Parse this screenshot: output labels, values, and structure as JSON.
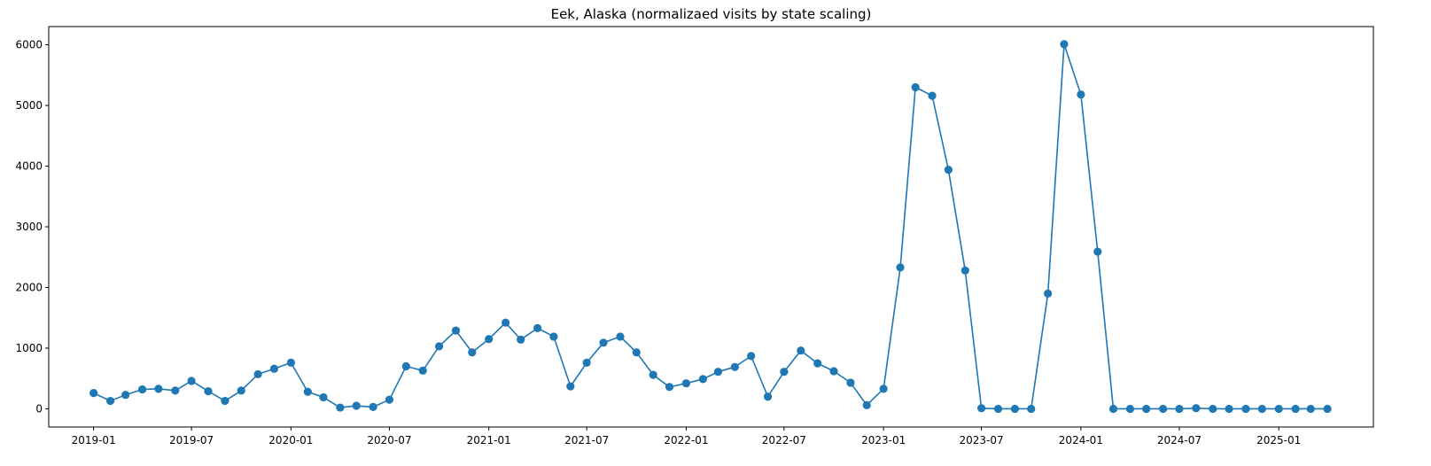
{
  "chart_data": {
    "type": "line",
    "title": "Eek, Alaska (normalizaed visits by state scaling)",
    "xlabel": "",
    "ylabel": "",
    "x_tick_labels": [
      "2019-01",
      "2019-07",
      "2020-01",
      "2020-07",
      "2021-01",
      "2021-07",
      "2022-01",
      "2022-07",
      "2023-01",
      "2023-07",
      "2024-01",
      "2024-07",
      "2025-01"
    ],
    "y_ticks": [
      0,
      1000,
      2000,
      3000,
      4000,
      5000,
      6000
    ],
    "ylim": [
      -300,
      6300
    ],
    "xlim": [
      "2018-10-10",
      "2025-06-25"
    ],
    "grid": false,
    "legend": "none",
    "series": [
      {
        "color": "#1f77b4",
        "marker": "circle",
        "x": [
          "2019-01-01",
          "2019-02-01",
          "2019-03-01",
          "2019-04-01",
          "2019-05-01",
          "2019-06-01",
          "2019-07-01",
          "2019-08-01",
          "2019-09-01",
          "2019-10-01",
          "2019-11-01",
          "2019-12-01",
          "2020-01-01",
          "2020-02-01",
          "2020-03-01",
          "2020-04-01",
          "2020-05-01",
          "2020-06-01",
          "2020-07-01",
          "2020-08-01",
          "2020-09-01",
          "2020-10-01",
          "2020-11-01",
          "2020-12-01",
          "2021-01-01",
          "2021-02-01",
          "2021-03-01",
          "2021-04-01",
          "2021-05-01",
          "2021-06-01",
          "2021-07-01",
          "2021-08-01",
          "2021-09-01",
          "2021-10-01",
          "2021-11-01",
          "2021-12-01",
          "2022-01-01",
          "2022-02-01",
          "2022-03-01",
          "2022-04-01",
          "2022-05-01",
          "2022-06-01",
          "2022-07-01",
          "2022-08-01",
          "2022-09-01",
          "2022-10-01",
          "2022-11-01",
          "2022-12-01",
          "2023-01-01",
          "2023-02-01",
          "2023-03-01",
          "2023-04-01",
          "2023-05-01",
          "2023-06-01",
          "2023-07-01",
          "2023-08-01",
          "2023-09-01",
          "2023-10-01",
          "2023-11-01",
          "2023-12-01",
          "2024-01-01",
          "2024-02-01",
          "2024-03-01",
          "2024-04-01",
          "2024-05-01",
          "2024-06-01",
          "2024-07-01",
          "2024-08-01",
          "2024-09-01",
          "2024-10-01",
          "2024-11-01",
          "2024-12-01",
          "2025-01-01",
          "2025-02-01",
          "2025-03-01",
          "2025-04-01"
        ],
        "values": [
          260,
          130,
          230,
          320,
          330,
          300,
          460,
          290,
          130,
          300,
          570,
          660,
          760,
          280,
          190,
          20,
          50,
          30,
          150,
          700,
          630,
          1030,
          1290,
          930,
          1150,
          1420,
          1140,
          1330,
          1190,
          370,
          760,
          1090,
          1190,
          930,
          560,
          360,
          420,
          490,
          610,
          690,
          870,
          200,
          610,
          960,
          750,
          620,
          430,
          60,
          330,
          2330,
          5300,
          5160,
          3940,
          2280,
          10,
          0,
          0,
          0,
          1900,
          6010,
          5180,
          2590,
          0,
          0,
          0,
          0,
          0,
          10,
          0,
          0,
          0,
          0,
          0,
          0,
          0,
          0
        ]
      }
    ]
  }
}
